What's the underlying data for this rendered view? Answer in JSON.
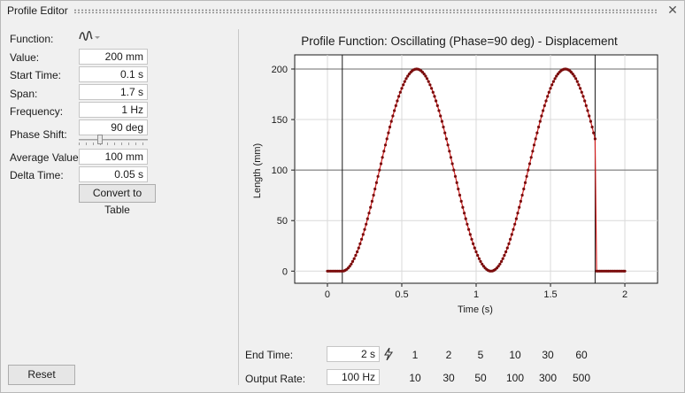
{
  "window": {
    "title": "Profile Editor",
    "close_glyph": "✕"
  },
  "params": {
    "function_label": "Function:",
    "function_icon": "wave-dropdown-icon",
    "value_label": "Value:",
    "value": "200 mm",
    "start_label": "Start Time:",
    "start": "0.1 s",
    "span_label": "Span:",
    "span": "1.7 s",
    "freq_label": "Frequency:",
    "freq": "1 Hz",
    "phase_label": "Phase Shift:",
    "phase": "90 deg",
    "avg_label": "Average Value:",
    "avg": "100 mm",
    "delta_label": "Delta Time:",
    "delta": "0.05 s",
    "convert_label": "Convert to Table",
    "reset_label": "Reset"
  },
  "bottom": {
    "end_time_label": "End Time:",
    "end_time": "2 s",
    "end_presets": [
      "1",
      "2",
      "5",
      "10",
      "30",
      "60"
    ],
    "output_rate_label": "Output Rate:",
    "output_rate": "100 Hz",
    "rate_presets": [
      "10",
      "30",
      "50",
      "100",
      "300",
      "500"
    ]
  },
  "chart_data": {
    "type": "line",
    "title": "Profile Function: Oscillating (Phase=90 deg) - Displacement",
    "xlabel": "Time (s)",
    "ylabel": "Length (mm)",
    "xlim": [
      -0.22,
      2.22
    ],
    "ylim": [
      -12,
      214
    ],
    "xticks": [
      0,
      0.5,
      1,
      1.5,
      2
    ],
    "xtick_labels": [
      "0",
      "0.5",
      "1",
      "1.5",
      "2"
    ],
    "yticks": [
      0,
      50,
      100,
      150,
      200
    ],
    "ytick_labels": [
      "0",
      "50",
      "100",
      "150",
      "200"
    ],
    "grid": true,
    "vertical_markers": [
      0.1,
      1.8
    ],
    "horizontal_markers": [
      100,
      200
    ],
    "series": [
      {
        "color": "#d42020",
        "marker_color": "#7a0c0c",
        "sample_step": 0.01,
        "start_time": 0.1,
        "span": 1.7,
        "average": 100,
        "amplitude": 100,
        "frequency_hz": 1,
        "phase_deg": 90,
        "x_range": [
          0,
          2
        ]
      }
    ]
  },
  "colors": {
    "line": "#d42020",
    "marker": "#7a0c0c",
    "grid": "#d9d9d9"
  }
}
